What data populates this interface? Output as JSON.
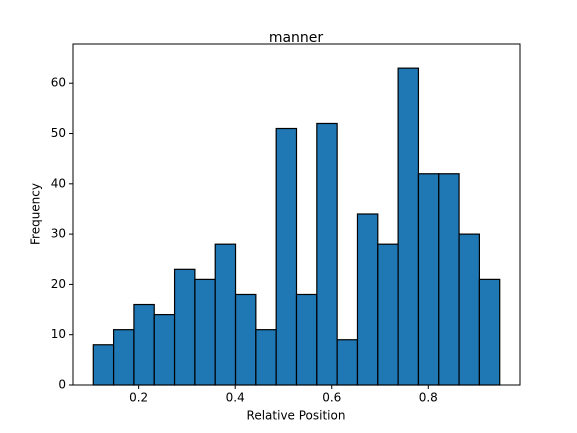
{
  "chart_data": {
    "type": "histogram",
    "title": "manner",
    "x_label": "Relative Position",
    "y_label": "Frequency",
    "bins": [
      0.106,
      0.1481,
      0.1902,
      0.2323,
      0.2744,
      0.3165,
      0.3586,
      0.4007,
      0.4428,
      0.4849,
      0.527,
      0.5691,
      0.6112,
      0.6533,
      0.6954,
      0.7375,
      0.7796,
      0.8217,
      0.8638,
      0.9059,
      0.948
    ],
    "values": [
      8,
      11,
      16,
      14,
      23,
      21,
      28,
      18,
      11,
      51,
      18,
      52,
      9,
      34,
      28,
      63,
      42,
      42,
      30,
      21
    ],
    "color": "#1f77b4",
    "edgecolor": "#000000",
    "xlim": [
      0.064,
      0.99
    ],
    "xticks": [
      0.2,
      0.4,
      0.6,
      0.8
    ],
    "ylim": [
      0,
      67.8
    ],
    "yticks": [
      0,
      10,
      20,
      30,
      40,
      50,
      60
    ],
    "grid": false
  }
}
